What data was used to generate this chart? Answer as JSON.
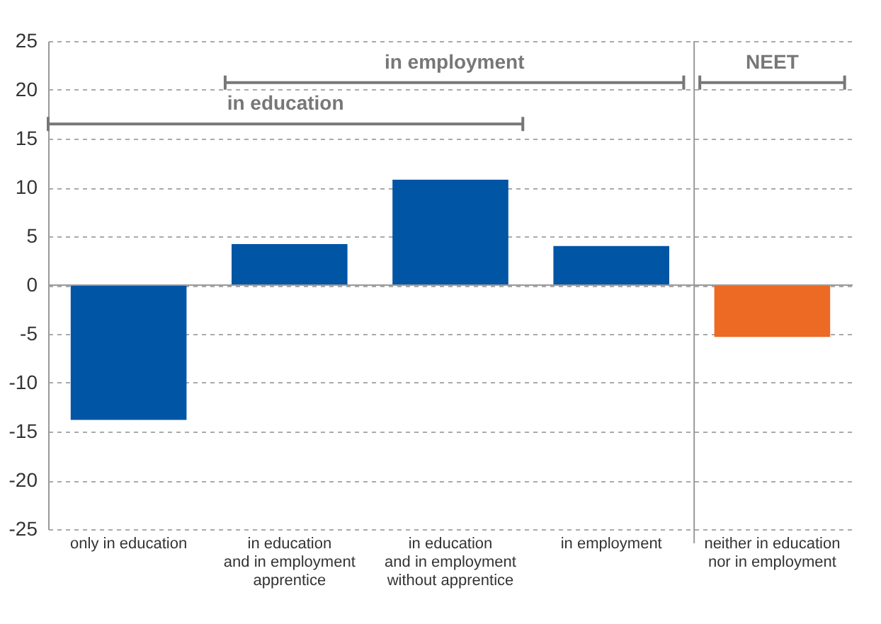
{
  "chart_data": {
    "type": "bar",
    "categories": [
      "only in education",
      "in education\nand in employment\napprentice",
      "in education\nand in employment\nwithout apprentice",
      "in employment",
      "neither in education\nnor in employment"
    ],
    "values": [
      -13.8,
      4.2,
      10.8,
      4.0,
      -5.3
    ],
    "colors": [
      "#0055a5",
      "#0055a5",
      "#0055a5",
      "#0055a5",
      "#ec6a23"
    ],
    "ylim": [
      -25,
      25
    ],
    "yticks": [
      -25,
      -20,
      -15,
      -10,
      -5,
      0,
      5,
      10,
      15,
      20,
      25
    ],
    "grid": "y",
    "annotations": [
      "in education",
      "in employment",
      "NEET"
    ]
  }
}
